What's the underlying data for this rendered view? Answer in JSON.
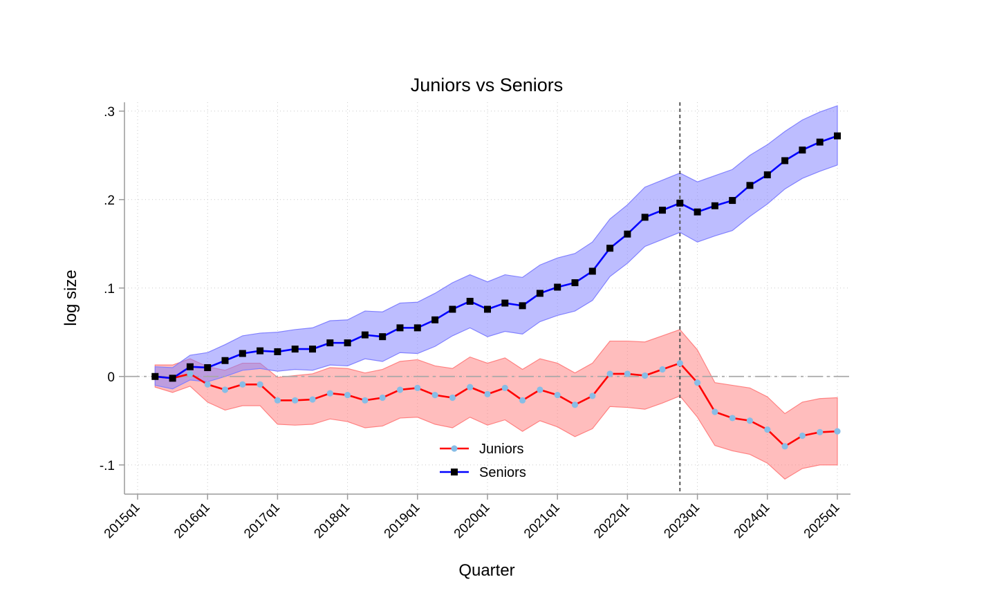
{
  "chart_data": {
    "type": "line",
    "title": "Juniors vs Seniors",
    "xlabel": "Quarter",
    "ylabel": "log size",
    "x": [
      "2015q2",
      "2015q3",
      "2015q4",
      "2016q1",
      "2016q2",
      "2016q3",
      "2016q4",
      "2017q1",
      "2017q2",
      "2017q3",
      "2017q4",
      "2018q1",
      "2018q2",
      "2018q3",
      "2018q4",
      "2019q1",
      "2019q2",
      "2019q3",
      "2019q4",
      "2020q1",
      "2020q2",
      "2020q3",
      "2020q4",
      "2021q1",
      "2021q2",
      "2021q3",
      "2021q4",
      "2022q1",
      "2022q2",
      "2022q3",
      "2022q4",
      "2023q1",
      "2023q2",
      "2023q3",
      "2023q4",
      "2024q1",
      "2024q2",
      "2024q3",
      "2024q4",
      "2025q1"
    ],
    "x_ticks": [
      "2015q1",
      "2016q1",
      "2017q1",
      "2018q1",
      "2019q1",
      "2020q1",
      "2021q1",
      "2022q1",
      "2023q1",
      "2024q1",
      "2025q1"
    ],
    "y_ticks": [
      -0.1,
      0,
      0.1,
      0.2,
      0.3
    ],
    "y_tick_labels": [
      "-.1",
      "0",
      ".1",
      ".2",
      ".3"
    ],
    "ylim": [
      -0.133,
      0.31
    ],
    "grid": true,
    "reference_line_y": 0,
    "reference_line_x": "2022q4",
    "legend_position": "bottom-center",
    "series": [
      {
        "name": "Juniors",
        "color": "#ff0000",
        "marker_color": "#87bde6",
        "band_color": "#ff8080",
        "values": [
          0.0,
          -0.002,
          0.003,
          -0.009,
          -0.015,
          -0.009,
          -0.009,
          -0.027,
          -0.027,
          -0.026,
          -0.019,
          -0.021,
          -0.027,
          -0.024,
          -0.015,
          -0.013,
          -0.021,
          -0.024,
          -0.012,
          -0.02,
          -0.013,
          -0.027,
          -0.015,
          -0.021,
          -0.032,
          -0.022,
          0.003,
          0.003,
          0.001,
          0.008,
          0.015,
          -0.007,
          -0.04,
          -0.047,
          -0.05,
          -0.06,
          -0.079,
          -0.067,
          -0.063,
          -0.062
        ],
        "lower": [
          -0.012,
          -0.018,
          -0.011,
          -0.029,
          -0.038,
          -0.033,
          -0.033,
          -0.054,
          -0.055,
          -0.054,
          -0.048,
          -0.051,
          -0.058,
          -0.056,
          -0.047,
          -0.046,
          -0.054,
          -0.058,
          -0.046,
          -0.055,
          -0.049,
          -0.062,
          -0.05,
          -0.057,
          -0.068,
          -0.059,
          -0.034,
          -0.035,
          -0.037,
          -0.03,
          -0.022,
          -0.046,
          -0.078,
          -0.084,
          -0.088,
          -0.098,
          -0.116,
          -0.104,
          -0.1,
          -0.1
        ],
        "upper": [
          0.013,
          0.013,
          0.02,
          0.011,
          0.007,
          0.015,
          0.015,
          -0.001,
          0.001,
          0.003,
          0.01,
          0.009,
          0.004,
          0.008,
          0.017,
          0.019,
          0.012,
          0.009,
          0.022,
          0.015,
          0.021,
          0.008,
          0.02,
          0.015,
          0.004,
          0.015,
          0.04,
          0.04,
          0.039,
          0.046,
          0.053,
          0.03,
          -0.007,
          -0.01,
          -0.013,
          -0.023,
          -0.042,
          -0.029,
          -0.025,
          -0.024
        ]
      },
      {
        "name": "Seniors",
        "color": "#0000ff",
        "marker_color": "#000000",
        "band_color": "#8080ff",
        "values": [
          0.0,
          -0.002,
          0.011,
          0.01,
          0.018,
          0.026,
          0.029,
          0.028,
          0.031,
          0.031,
          0.038,
          0.038,
          0.047,
          0.045,
          0.055,
          0.055,
          0.064,
          0.076,
          0.085,
          0.076,
          0.083,
          0.08,
          0.094,
          0.101,
          0.106,
          0.119,
          0.145,
          0.161,
          0.18,
          0.188,
          0.196,
          0.186,
          0.193,
          0.199,
          0.216,
          0.228,
          0.244,
          0.256,
          0.265,
          0.272
        ],
        "lower": [
          -0.01,
          -0.014,
          -0.004,
          -0.006,
          0.0,
          0.007,
          0.009,
          0.006,
          0.008,
          0.007,
          0.013,
          0.012,
          0.02,
          0.017,
          0.027,
          0.026,
          0.034,
          0.046,
          0.055,
          0.045,
          0.051,
          0.048,
          0.062,
          0.069,
          0.074,
          0.086,
          0.113,
          0.128,
          0.147,
          0.155,
          0.163,
          0.152,
          0.159,
          0.165,
          0.181,
          0.195,
          0.212,
          0.224,
          0.232,
          0.239
        ],
        "upper": [
          0.011,
          0.01,
          0.024,
          0.027,
          0.036,
          0.046,
          0.049,
          0.05,
          0.053,
          0.055,
          0.063,
          0.064,
          0.074,
          0.073,
          0.083,
          0.084,
          0.094,
          0.106,
          0.115,
          0.107,
          0.115,
          0.112,
          0.126,
          0.134,
          0.139,
          0.152,
          0.178,
          0.194,
          0.214,
          0.222,
          0.23,
          0.22,
          0.227,
          0.234,
          0.25,
          0.262,
          0.277,
          0.29,
          0.299,
          0.306
        ]
      }
    ]
  }
}
